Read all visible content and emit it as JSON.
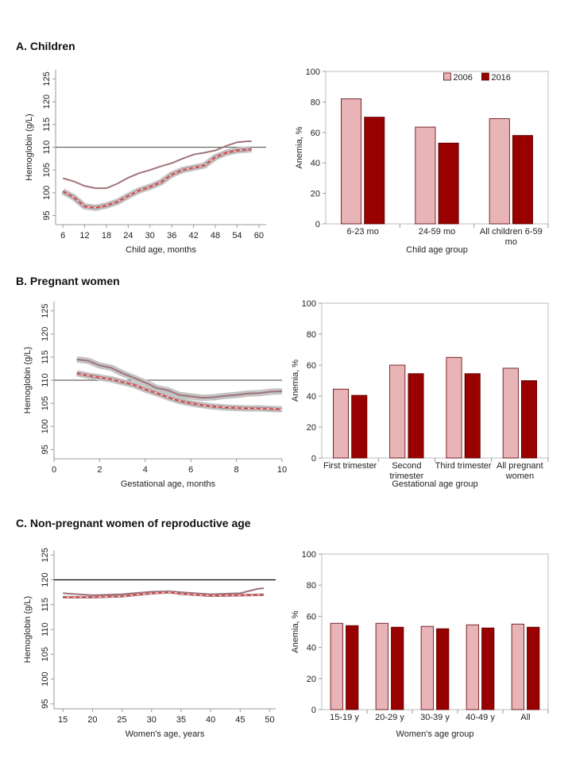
{
  "panel_titles": [
    "A. Children",
    "B. Pregnant women",
    "C. Non-pregnant women of reproductive age"
  ],
  "chart_data": [
    {
      "type": "line",
      "xlabel": "Child age, months",
      "ylabel": "Hemoglobin (g/L)",
      "xlim": [
        4,
        62
      ],
      "xticks": [
        6,
        12,
        18,
        24,
        30,
        36,
        42,
        48,
        54,
        60
      ],
      "ylim": [
        93,
        127
      ],
      "yticks": [
        95,
        100,
        105,
        110,
        115,
        120,
        125
      ],
      "hline": 110,
      "hline_color": "#666666",
      "series": [
        {
          "color": "#a0737a",
          "style": "solid",
          "band": false,
          "x": [
            6,
            9,
            12,
            15,
            18,
            21,
            24,
            27,
            30,
            33,
            36,
            39,
            42,
            45,
            48,
            51,
            54,
            57,
            58
          ],
          "values": [
            103.2,
            102.5,
            101.5,
            101.0,
            101.0,
            102.0,
            103.3,
            104.3,
            105.0,
            105.8,
            106.5,
            107.5,
            108.4,
            108.8,
            109.3,
            110.3,
            111.1,
            111.3,
            111.3
          ]
        },
        {
          "color": "#e03030",
          "style": "dashed",
          "band": true,
          "x": [
            6,
            9,
            12,
            15,
            18,
            21,
            24,
            27,
            30,
            33,
            36,
            39,
            42,
            45,
            48,
            51,
            54,
            57,
            58
          ],
          "values": [
            100.3,
            99.0,
            97.0,
            96.7,
            97.2,
            98.0,
            99.3,
            100.5,
            101.3,
            102.3,
            104.0,
            105.0,
            105.5,
            106.0,
            107.8,
            108.8,
            109.3,
            109.5,
            109.6
          ]
        }
      ]
    },
    {
      "type": "bar",
      "xlabel": "Child age group",
      "ylabel": "Anemia, %",
      "ylim": [
        0,
        100
      ],
      "yticks": [
        0,
        20,
        40,
        60,
        80,
        100
      ],
      "legend": "top",
      "categories": [
        "6-23 mo",
        "24-59 mo",
        "All children 6-59 mo"
      ],
      "series": [
        {
          "name": "2006",
          "color": "#e8b4b8",
          "values": [
            82,
            63.5,
            69
          ]
        },
        {
          "name": "2016",
          "color": "#990000",
          "values": [
            70,
            53,
            58
          ]
        }
      ]
    },
    {
      "type": "line",
      "xlabel": "Gestational age, months",
      "ylabel": "Hemoglobin (g/L)",
      "xlim": [
        0,
        10
      ],
      "xticks": [
        0,
        2,
        4,
        6,
        8,
        10
      ],
      "ylim": [
        93,
        127
      ],
      "yticks": [
        95,
        100,
        105,
        110,
        115,
        120,
        125
      ],
      "hline": 110,
      "hline_color": "#666666",
      "series": [
        {
          "color": "#a0737a",
          "style": "solid",
          "band": true,
          "x": [
            1,
            1.5,
            2,
            2.5,
            3,
            3.5,
            4,
            4.5,
            5,
            5.5,
            6,
            6.5,
            7,
            7.5,
            8,
            8.5,
            9,
            9.5,
            10
          ],
          "values": [
            114.5,
            114.2,
            113.2,
            112.7,
            111.5,
            110.5,
            109.5,
            108.3,
            107.8,
            106.8,
            106.5,
            106.2,
            106.3,
            106.6,
            106.8,
            107.1,
            107.2,
            107.5,
            107.6
          ]
        },
        {
          "color": "#e03030",
          "style": "dashed",
          "band": true,
          "x": [
            1,
            1.5,
            2,
            2.5,
            3,
            3.5,
            4,
            4.5,
            5,
            5.5,
            6,
            6.5,
            7,
            7.5,
            8,
            8.5,
            9,
            9.5,
            10
          ],
          "values": [
            111.5,
            111.0,
            110.6,
            110.2,
            109.6,
            109.0,
            108.0,
            107.2,
            106.3,
            105.5,
            105.0,
            104.6,
            104.3,
            104.1,
            104.0,
            103.9,
            103.9,
            103.8,
            103.7
          ]
        }
      ]
    },
    {
      "type": "bar",
      "xlabel": "Gestational age group",
      "ylabel": "Anemia, %",
      "ylim": [
        0,
        100
      ],
      "yticks": [
        0,
        20,
        40,
        60,
        80,
        100
      ],
      "categories": [
        "First trimester",
        "Second trimester",
        "Third trimester",
        "All pregnant women"
      ],
      "series": [
        {
          "color": "#e8b4b8",
          "values": [
            44.5,
            60,
            65,
            58
          ]
        },
        {
          "color": "#990000",
          "values": [
            40.5,
            54.5,
            54.5,
            50
          ]
        }
      ]
    },
    {
      "type": "line",
      "xlabel": "Women's age, years",
      "ylabel": "Hemoglobin (g/L)",
      "xlim": [
        13.5,
        51
      ],
      "xticks": [
        15,
        20,
        25,
        30,
        35,
        40,
        45,
        50
      ],
      "ylim": [
        94,
        126
      ],
      "yticks": [
        95,
        100,
        105,
        110,
        115,
        120,
        125
      ],
      "hline": 120,
      "hline_color": "#000000",
      "series": [
        {
          "color": "#a0737a",
          "style": "solid",
          "band": false,
          "x": [
            15,
            20,
            25,
            30,
            33,
            35,
            40,
            45,
            48,
            49
          ],
          "values": [
            117.3,
            116.9,
            117.1,
            117.6,
            117.7,
            117.5,
            117.1,
            117.3,
            118.2,
            118.3
          ]
        },
        {
          "color": "#e03030",
          "style": "dashed",
          "band": false,
          "x": [
            15,
            20,
            25,
            30,
            33,
            35,
            40,
            45,
            49
          ],
          "values": [
            116.5,
            116.5,
            116.7,
            117.3,
            117.5,
            117.2,
            116.8,
            116.9,
            117.0
          ]
        }
      ]
    },
    {
      "type": "bar",
      "xlabel": "Women's age group",
      "ylabel": "Anemia, %",
      "ylim": [
        0,
        100
      ],
      "yticks": [
        0,
        20,
        40,
        60,
        80,
        100
      ],
      "categories": [
        "15-19 y",
        "20-29 y",
        "30-39 y",
        "40-49 y",
        "All"
      ],
      "series": [
        {
          "color": "#e8b4b8",
          "values": [
            55.5,
            55.5,
            53.5,
            54.5,
            55
          ]
        },
        {
          "color": "#990000",
          "values": [
            54,
            53,
            52,
            52.5,
            53
          ]
        }
      ]
    }
  ]
}
